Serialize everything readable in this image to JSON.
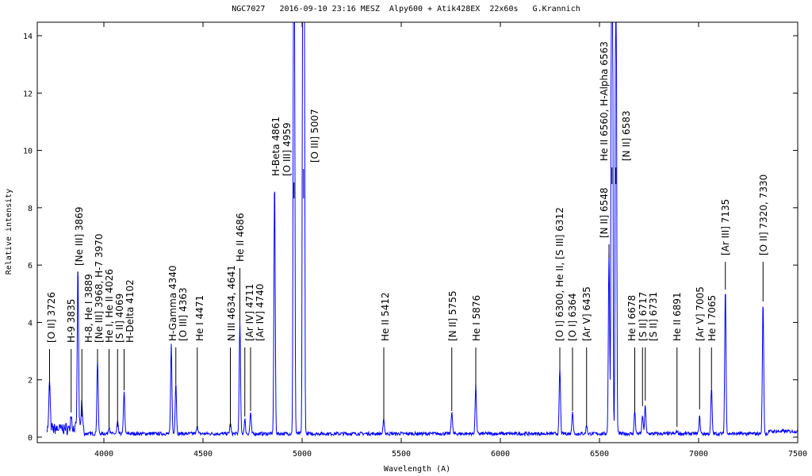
{
  "chart_data": {
    "type": "line",
    "title": "NGC7027   2016-09-10 23:16 MESZ  Alpy600 + Atik428EX  22x60s   G.Krannich",
    "xlabel": "Wavelength (A)",
    "ylabel": "Relative intensity",
    "xlim": [
      3664,
      7500
    ],
    "ylim": [
      0,
      14.5
    ],
    "x_ticks": [
      4000,
      4500,
      5000,
      5500,
      6000,
      6500,
      7000,
      7500
    ],
    "y_ticks": [
      0,
      2,
      4,
      6,
      8,
      10,
      12,
      14
    ],
    "grid": false,
    "series_color": "#0000ff",
    "continuum": 0.12,
    "series": [
      {
        "name": "NGC7027 spectrum",
        "peaks": [
          {
            "wavelength": 3726,
            "intensity": 1.7
          },
          {
            "wavelength": 3835,
            "intensity": 0.5
          },
          {
            "wavelength": 3869,
            "intensity": 5.6
          },
          {
            "wavelength": 3889,
            "intensity": 0.9
          },
          {
            "wavelength": 3968,
            "intensity": 2.6
          },
          {
            "wavelength": 4026,
            "intensity": 0.25
          },
          {
            "wavelength": 4069,
            "intensity": 0.4
          },
          {
            "wavelength": 4102,
            "intensity": 1.5
          },
          {
            "wavelength": 4340,
            "intensity": 3.1
          },
          {
            "wavelength": 4363,
            "intensity": 1.8
          },
          {
            "wavelength": 4471,
            "intensity": 0.3
          },
          {
            "wavelength": 4638,
            "intensity": 0.35
          },
          {
            "wavelength": 4686,
            "intensity": 3.9
          },
          {
            "wavelength": 4711,
            "intensity": 0.5
          },
          {
            "wavelength": 4740,
            "intensity": 0.75
          },
          {
            "wavelength": 4861,
            "intensity": 8.8
          },
          {
            "wavelength": 4959,
            "intensity": 30
          },
          {
            "wavelength": 5007,
            "intensity": 90
          },
          {
            "wavelength": 5412,
            "intensity": 0.5
          },
          {
            "wavelength": 5755,
            "intensity": 0.8
          },
          {
            "wavelength": 5876,
            "intensity": 1.7
          },
          {
            "wavelength": 6300,
            "intensity": 2.3
          },
          {
            "wavelength": 6364,
            "intensity": 0.8
          },
          {
            "wavelength": 6435,
            "intensity": 0.3
          },
          {
            "wavelength": 6548,
            "intensity": 6.3
          },
          {
            "wavelength": 6563,
            "intensity": 40
          },
          {
            "wavelength": 6583,
            "intensity": 20
          },
          {
            "wavelength": 6678,
            "intensity": 0.8
          },
          {
            "wavelength": 6717,
            "intensity": 0.65
          },
          {
            "wavelength": 6731,
            "intensity": 1.0
          },
          {
            "wavelength": 6891,
            "intensity": 0.1
          },
          {
            "wavelength": 7005,
            "intensity": 0.6
          },
          {
            "wavelength": 7065,
            "intensity": 1.6
          },
          {
            "wavelength": 7135,
            "intensity": 5.1
          },
          {
            "wavelength": 7325,
            "intensity": 4.6
          }
        ]
      }
    ],
    "annotations": [
      {
        "label": "[O II]  3726",
        "wavelength": 3726
      },
      {
        "label": "H-9  3835",
        "wavelength": 3835
      },
      {
        "label": "[Ne III]  3869",
        "wavelength": 3869
      },
      {
        "label": "H-8, He I  3889",
        "wavelength": 3889
      },
      {
        "label": "[Ne III]  3968, H-7  3970",
        "wavelength": 3968
      },
      {
        "label": "He I, He II  4026",
        "wavelength": 4026
      },
      {
        "label": "[S II]  4069",
        "wavelength": 4069
      },
      {
        "label": "H-Delta  4102",
        "wavelength": 4102
      },
      {
        "label": "H-Gamma  4340",
        "wavelength": 4340
      },
      {
        "label": "[O III]  4363",
        "wavelength": 4363
      },
      {
        "label": "He I  4471",
        "wavelength": 4471
      },
      {
        "label": "N III  4634, 4641",
        "wavelength": 4638
      },
      {
        "label": "He II  4686",
        "wavelength": 4686
      },
      {
        "label": "[Ar IV]  4711",
        "wavelength": 4711
      },
      {
        "label": "[Ar IV]  4740",
        "wavelength": 4740
      },
      {
        "label": "H-Beta  4861",
        "wavelength": 4861
      },
      {
        "label": "[O III]  4959",
        "wavelength": 4959
      },
      {
        "label": "[O III]  5007",
        "wavelength": 5007
      },
      {
        "label": "He II  5412",
        "wavelength": 5412
      },
      {
        "label": "[N II]  5755",
        "wavelength": 5755
      },
      {
        "label": "He I  5876",
        "wavelength": 5876
      },
      {
        "label": "[O I]  6300, He II, [S III]  6312",
        "wavelength": 6300
      },
      {
        "label": "[O I]  6364",
        "wavelength": 6364
      },
      {
        "label": "[Ar V]  6435",
        "wavelength": 6435
      },
      {
        "label": "[N II]  6548",
        "wavelength": 6548
      },
      {
        "label": "He II  6560, H-Alpha  6563",
        "wavelength": 6563
      },
      {
        "label": "[N II]  6583",
        "wavelength": 6583
      },
      {
        "label": "He I  6678",
        "wavelength": 6678
      },
      {
        "label": "[S II]  6717",
        "wavelength": 6717
      },
      {
        "label": "[S II]  6731",
        "wavelength": 6731
      },
      {
        "label": "He II  6891",
        "wavelength": 6891
      },
      {
        "label": "[Ar V]  7005",
        "wavelength": 7005
      },
      {
        "label": "He I  7065",
        "wavelength": 7065
      },
      {
        "label": "[Ar III]  7135",
        "wavelength": 7135
      },
      {
        "label": "[O II]  7320, 7330",
        "wavelength": 7325
      }
    ]
  }
}
